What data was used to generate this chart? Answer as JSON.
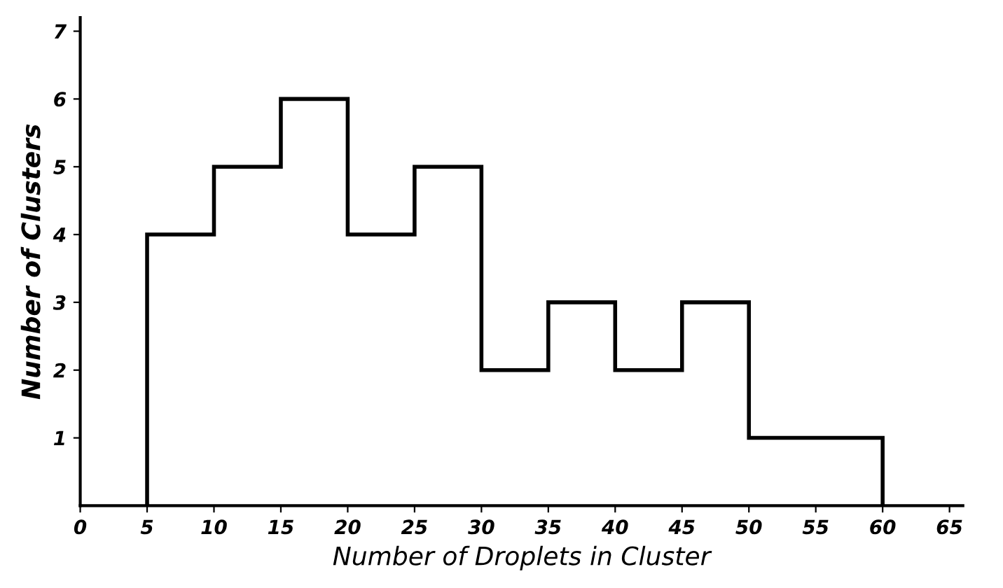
{
  "chart_data": {
    "type": "histogram",
    "xlabel": "Number of Droplets in Cluster",
    "ylabel": "Number of Clusters",
    "bins": [
      5,
      10,
      15,
      20,
      25,
      30,
      35,
      40,
      45,
      50,
      55,
      60
    ],
    "values": [
      4,
      5,
      6,
      4,
      5,
      2,
      3,
      2,
      3,
      1,
      1
    ],
    "color": "#000000",
    "xlim": [
      0,
      66
    ],
    "xticks": [
      0,
      5,
      10,
      15,
      20,
      25,
      30,
      35,
      40,
      45,
      50,
      55,
      60,
      65
    ],
    "ylim": [
      0,
      7.2
    ],
    "yticks": [
      1,
      2,
      3,
      4,
      5,
      6,
      7
    ],
    "grid": false
  }
}
